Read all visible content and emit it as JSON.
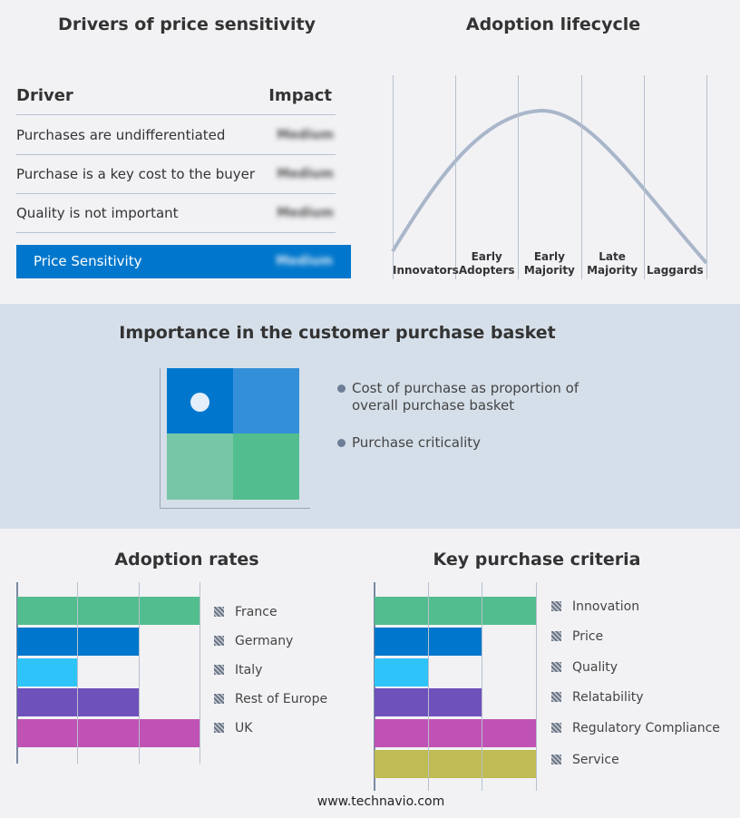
{
  "drivers": {
    "title": "Drivers of price sensitivity",
    "col_driver": "Driver",
    "col_impact": "Impact",
    "rows": [
      {
        "driver": "Purchases are undifferentiated",
        "impact": "Medium"
      },
      {
        "driver": "Purchase is a key cost to the buyer",
        "impact": "Medium"
      },
      {
        "driver": "Quality is not important",
        "impact": "Medium"
      }
    ],
    "summary": {
      "label": "Price Sensitivity",
      "impact": "Medium"
    }
  },
  "lifecycle": {
    "title": "Adoption lifecycle",
    "stages": [
      "Innovators",
      "Early Adopters",
      "Early Majority",
      "Late Majority",
      "Laggards"
    ]
  },
  "basket": {
    "title": "Importance in the customer purchase basket",
    "legend": [
      "Cost of purchase as proportion of overall purchase basket",
      "Purchase criticality"
    ],
    "colors": {
      "tl": "#0077cc",
      "tr": "#3390d8",
      "bl": "#77c6a8",
      "br": "#52be8f"
    }
  },
  "chart_data": [
    {
      "type": "bar",
      "orientation": "horizontal",
      "title": "Adoption rates",
      "categories": [
        "France",
        "Germany",
        "Italy",
        "Rest of Europe",
        "UK"
      ],
      "values": [
        3,
        2,
        1,
        2,
        3
      ],
      "xlim": [
        0,
        3
      ],
      "grid": true,
      "legend": "right",
      "colors": [
        "#52be8f",
        "#0077cc",
        "#2ec4fa",
        "#6f51bb",
        "#bf52b4"
      ]
    },
    {
      "type": "bar",
      "orientation": "horizontal",
      "title": "Key purchase criteria",
      "categories": [
        "Innovation",
        "Price",
        "Quality",
        "Relatability",
        "Regulatory Compliance",
        "Service"
      ],
      "values": [
        3,
        2,
        1,
        2,
        3,
        3
      ],
      "xlim": [
        0,
        3
      ],
      "grid": true,
      "legend": "right",
      "colors": [
        "#52be8f",
        "#0077cc",
        "#2ec4fa",
        "#6f51bb",
        "#bf52b4",
        "#c0bb52"
      ]
    }
  ],
  "footer": "www.technavio.com"
}
